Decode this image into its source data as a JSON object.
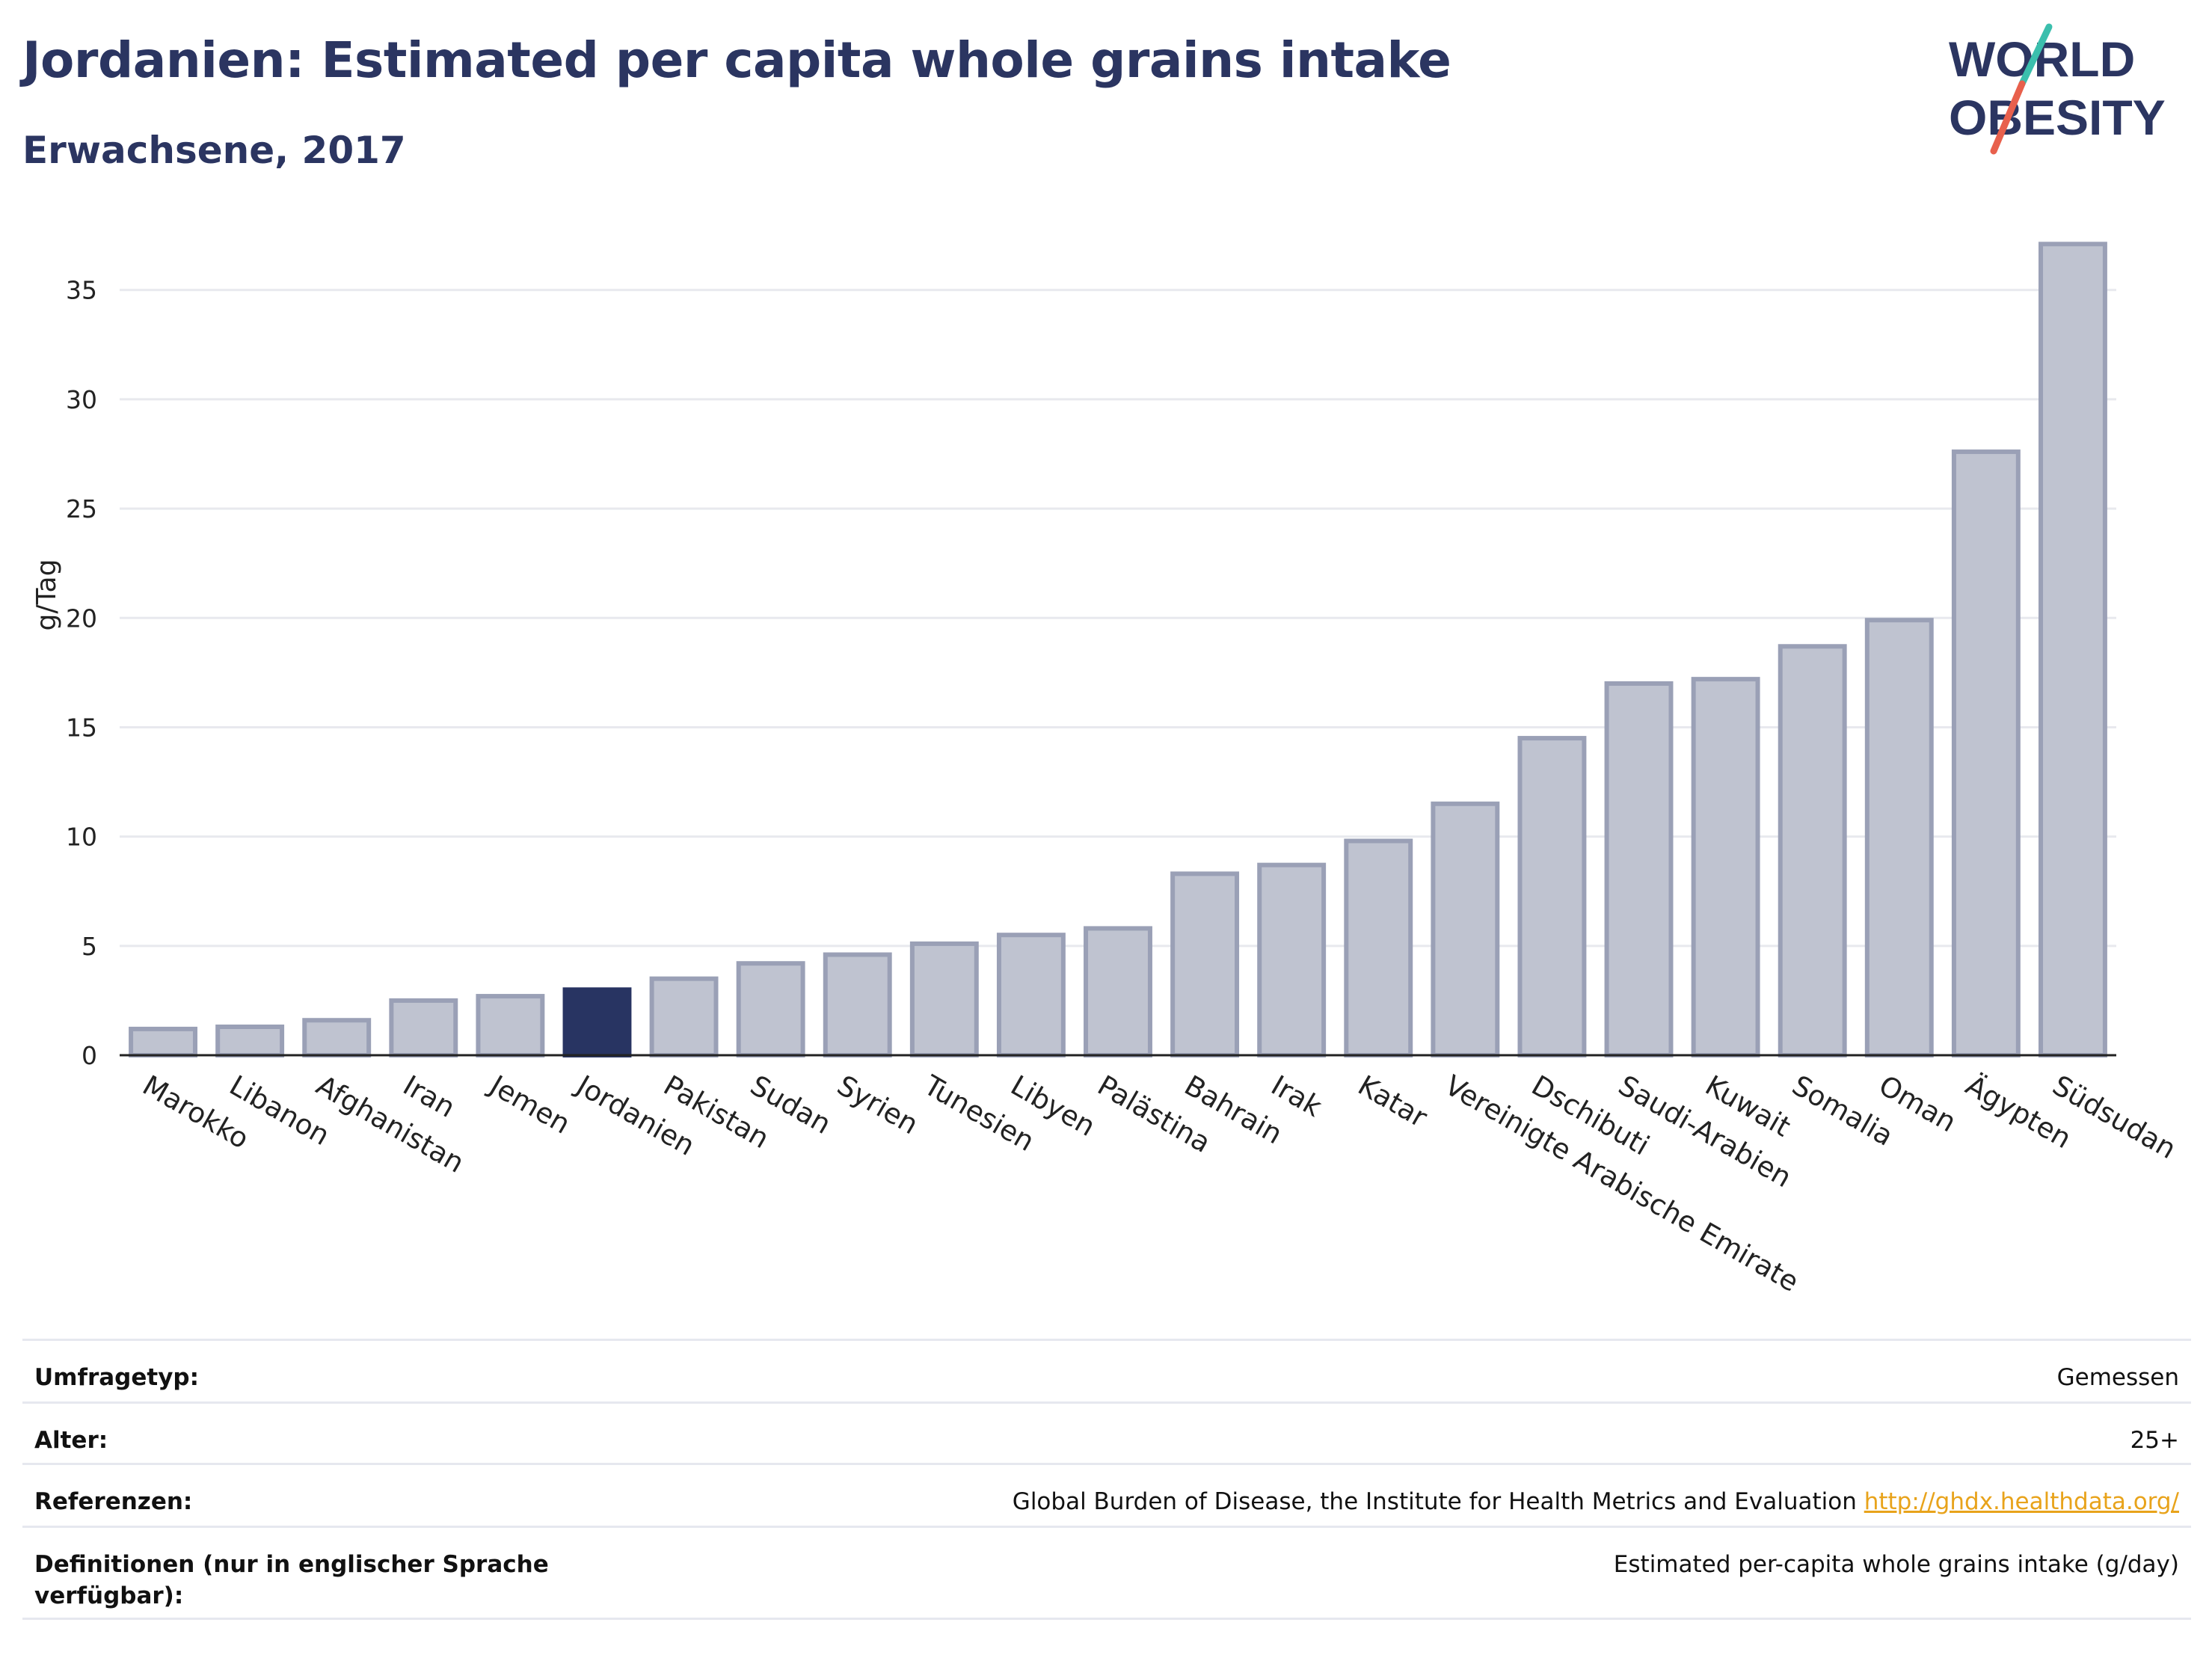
{
  "header": {
    "title": "Jordanien: Estimated per capita whole grains intake",
    "subtitle": "Erwachsene, 2017"
  },
  "logo": {
    "line1": "WORLD",
    "line2": "OBESITY",
    "accent_colors": [
      "#3bbfad",
      "#e8604c"
    ],
    "text_color": "#2b3561"
  },
  "colors": {
    "highlight": "#283462",
    "bar": "#bfc3d0",
    "bar_border": "#9aa0b6",
    "grid": "#e8e9ee",
    "axis": "#222222"
  },
  "chart_data": {
    "type": "bar",
    "ylabel": "g/Tag",
    "xlabel": "",
    "ylim": [
      0,
      38
    ],
    "yticks": [
      0,
      5,
      10,
      15,
      20,
      25,
      30,
      35
    ],
    "grid": true,
    "highlight": "Jordanien",
    "categories": [
      "Marokko",
      "Libanon",
      "Afghanistan",
      "Iran",
      "Jemen",
      "Jordanien",
      "Pakistan",
      "Sudan",
      "Syrien",
      "Tunesien",
      "Libyen",
      "Palästina",
      "Bahrain",
      "Irak",
      "Katar",
      "Vereinigte Arabische Emirate",
      "Dschibuti",
      "Saudi-Arabien",
      "Kuwait",
      "Somalia",
      "Oman",
      "Ägypten",
      "Südsudan"
    ],
    "values": [
      1.2,
      1.3,
      1.6,
      2.5,
      2.7,
      3.0,
      3.5,
      4.2,
      4.6,
      5.1,
      5.5,
      5.8,
      8.3,
      8.7,
      9.8,
      11.5,
      14.5,
      17.0,
      17.2,
      18.7,
      19.9,
      27.6,
      37.1
    ]
  },
  "info": {
    "rows": [
      {
        "label": "Umfragetyp:",
        "value": "Gemessen"
      },
      {
        "label": "Alter:",
        "value": "25+"
      },
      {
        "label": "Referenzen:",
        "value": "Global Burden of Disease, the Institute for Health Metrics and Evaluation",
        "link": "http://ghdx.healthdata.org/"
      },
      {
        "label": "Definitionen (nur in englischer Sprache verfügbar):",
        "value": "Estimated per-capita whole grains intake (g/day)"
      }
    ]
  }
}
